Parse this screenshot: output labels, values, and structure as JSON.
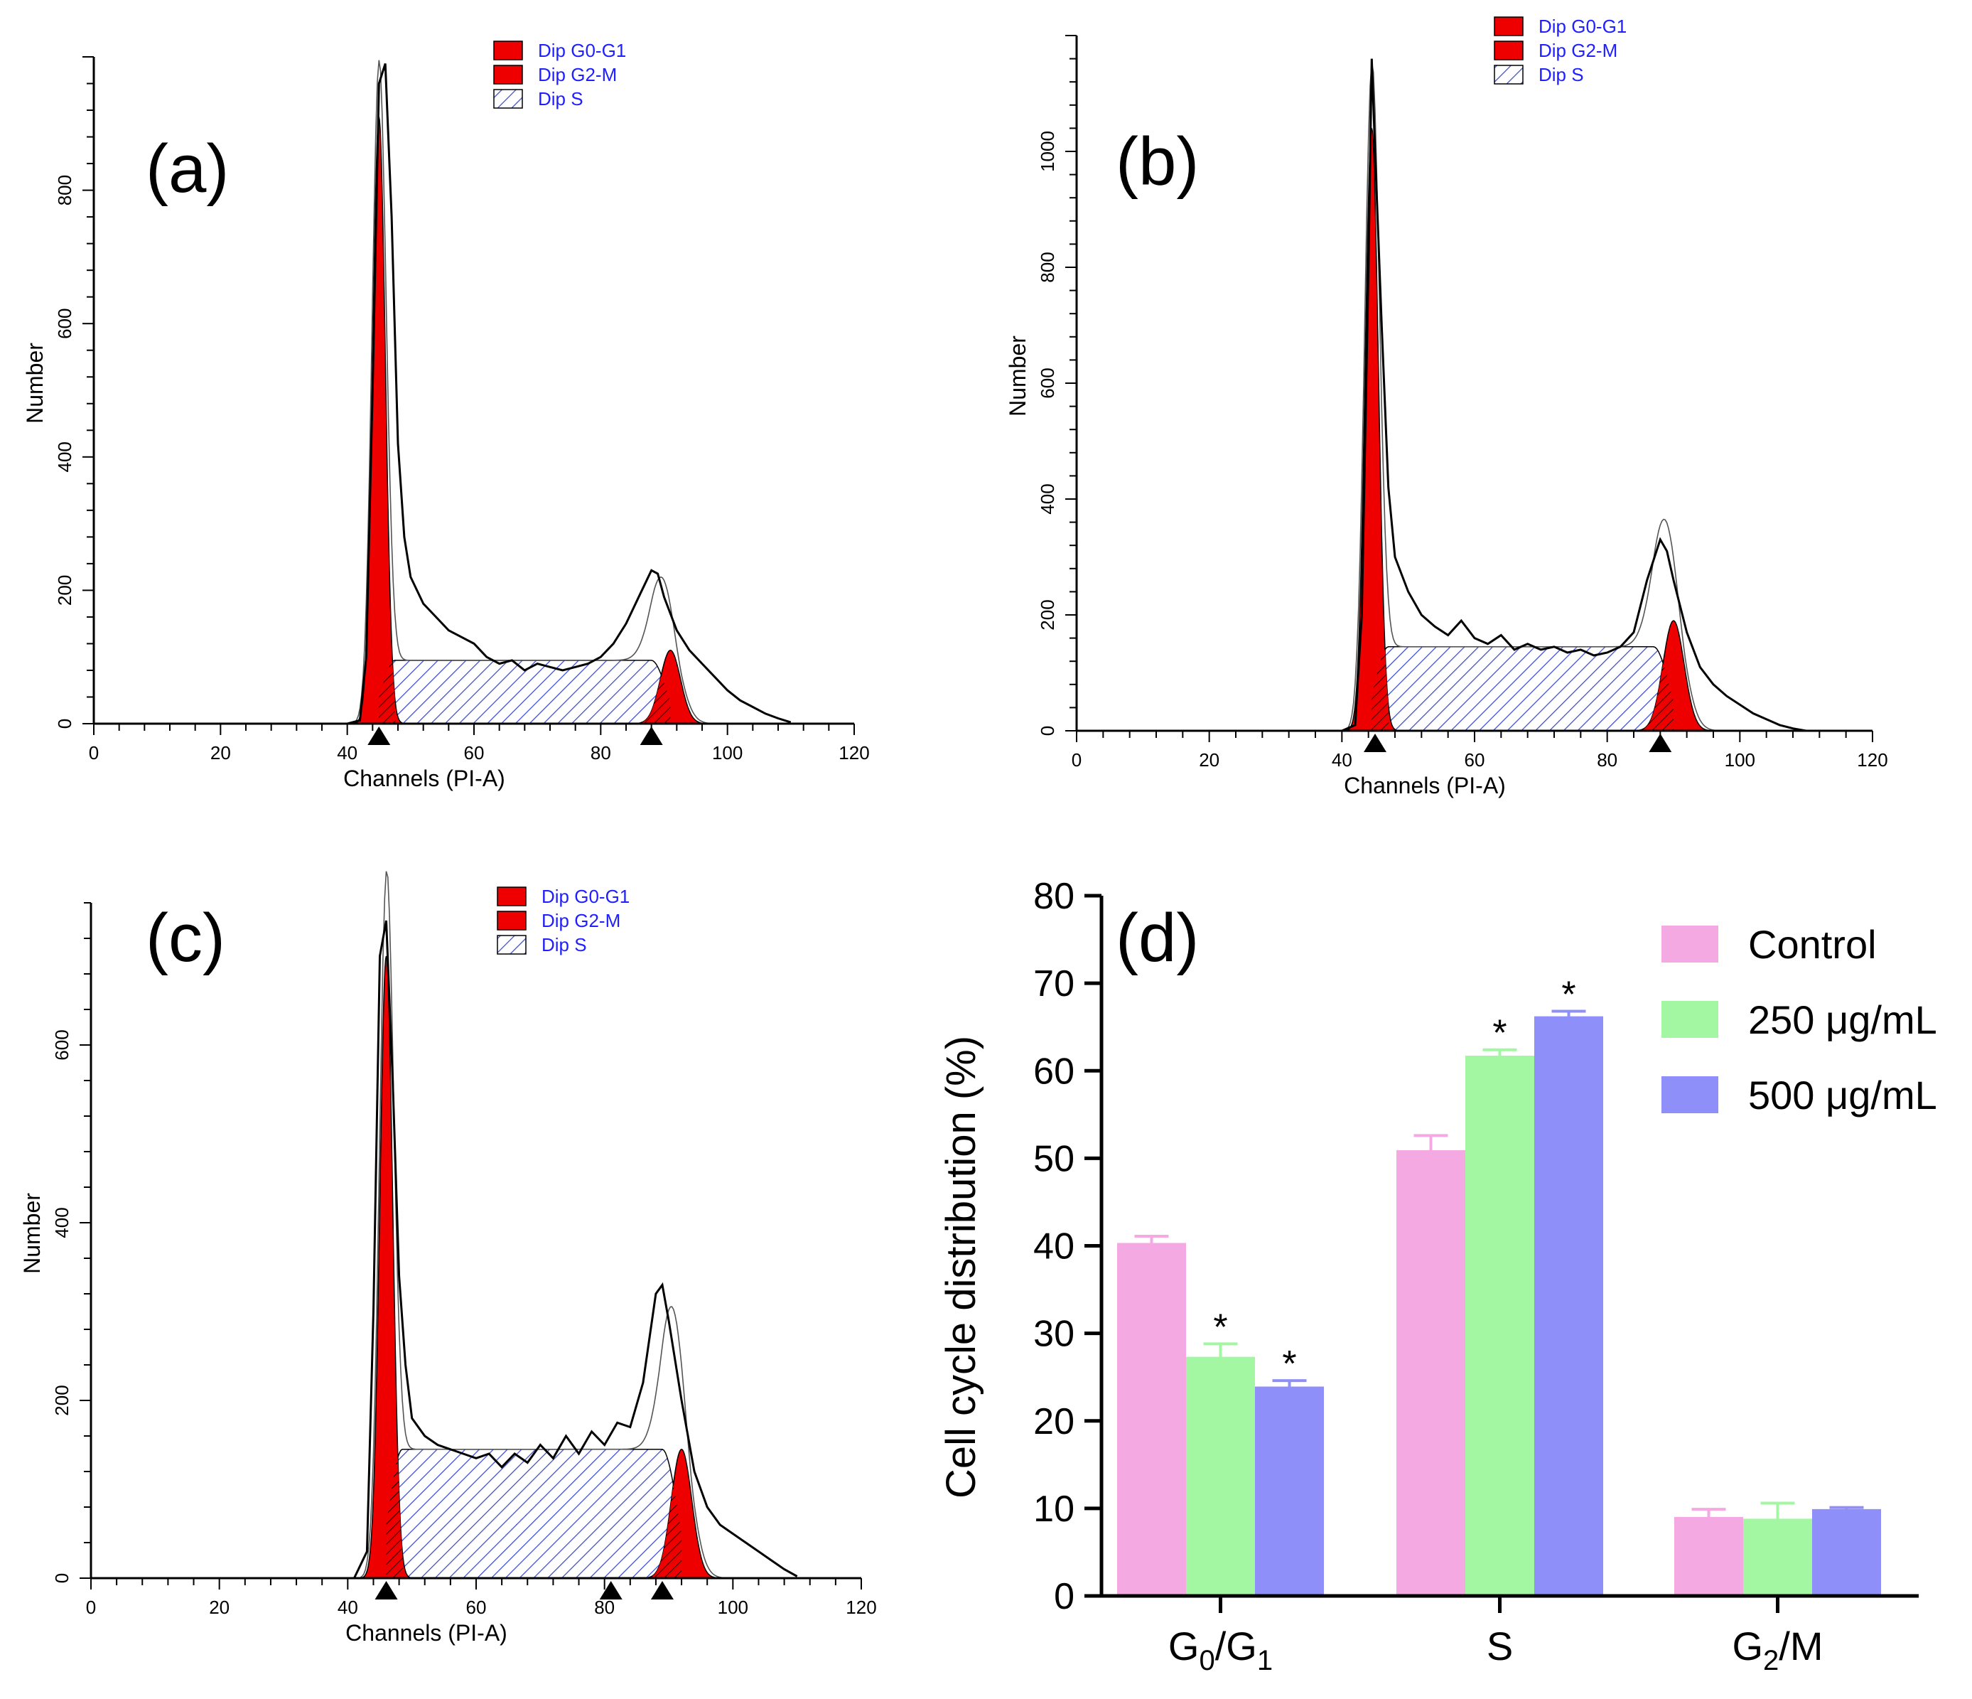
{
  "chart_data": [
    {
      "panel": "(a)",
      "type": "area",
      "xlabel": "Channels (PI-A)",
      "ylabel": "Number",
      "xlim": [
        0,
        120
      ],
      "ylim": [
        0,
        1000
      ],
      "xticks": [
        "0",
        "20",
        "40",
        "60",
        "80",
        "100",
        "120"
      ],
      "yticks": [
        "0",
        "200",
        "400",
        "600",
        "800"
      ],
      "legend": [
        "Dip G0-G1",
        "Dip G2-M",
        "Dip S"
      ],
      "peaks": {
        "g0g1_channel": 45,
        "g0g1_height": 910,
        "g2m_channel": 91,
        "g2m_height": 110,
        "s_level": 95
      },
      "markers": [
        45,
        88
      ],
      "histogram": [
        [
          40,
          0
        ],
        [
          42,
          5
        ],
        [
          43,
          100
        ],
        [
          44,
          500
        ],
        [
          45,
          960
        ],
        [
          46,
          990
        ],
        [
          47,
          760
        ],
        [
          48,
          420
        ],
        [
          49,
          280
        ],
        [
          50,
          220
        ],
        [
          52,
          180
        ],
        [
          54,
          160
        ],
        [
          56,
          140
        ],
        [
          58,
          130
        ],
        [
          60,
          120
        ],
        [
          62,
          100
        ],
        [
          64,
          90
        ],
        [
          66,
          95
        ],
        [
          68,
          80
        ],
        [
          70,
          90
        ],
        [
          72,
          85
        ],
        [
          74,
          80
        ],
        [
          76,
          85
        ],
        [
          78,
          90
        ],
        [
          80,
          100
        ],
        [
          82,
          120
        ],
        [
          84,
          150
        ],
        [
          86,
          190
        ],
        [
          88,
          230
        ],
        [
          89,
          225
        ],
        [
          90,
          190
        ],
        [
          92,
          140
        ],
        [
          94,
          110
        ],
        [
          96,
          90
        ],
        [
          98,
          70
        ],
        [
          100,
          50
        ],
        [
          102,
          35
        ],
        [
          104,
          25
        ],
        [
          106,
          15
        ],
        [
          108,
          8
        ],
        [
          110,
          2
        ]
      ]
    },
    {
      "panel": "(b)",
      "type": "area",
      "xlabel": "Channels (PI-A)",
      "ylabel": "Number",
      "xlim": [
        0,
        120
      ],
      "ylim": [
        0,
        1200
      ],
      "xticks": [
        "0",
        "20",
        "40",
        "60",
        "80",
        "100",
        "120"
      ],
      "yticks": [
        "0",
        "200",
        "400",
        "600",
        "800",
        "1000"
      ],
      "legend": [
        "Dip G0-G1",
        "Dip G2-M",
        "Dip S"
      ],
      "peaks": {
        "g0g1_channel": 44.5,
        "g0g1_height": 1040,
        "g2m_channel": 90,
        "g2m_height": 190,
        "s_level": 145
      },
      "markers": [
        45,
        88
      ],
      "histogram": [
        [
          40,
          0
        ],
        [
          42,
          10
        ],
        [
          43,
          200
        ],
        [
          44,
          800
        ],
        [
          44.5,
          1160
        ],
        [
          45,
          1000
        ],
        [
          46,
          700
        ],
        [
          47,
          420
        ],
        [
          48,
          300
        ],
        [
          50,
          240
        ],
        [
          52,
          200
        ],
        [
          54,
          180
        ],
        [
          56,
          165
        ],
        [
          58,
          190
        ],
        [
          60,
          160
        ],
        [
          62,
          150
        ],
        [
          64,
          165
        ],
        [
          66,
          140
        ],
        [
          68,
          150
        ],
        [
          70,
          140
        ],
        [
          72,
          145
        ],
        [
          74,
          135
        ],
        [
          76,
          140
        ],
        [
          78,
          130
        ],
        [
          80,
          135
        ],
        [
          82,
          145
        ],
        [
          84,
          170
        ],
        [
          86,
          260
        ],
        [
          88,
          330
        ],
        [
          89,
          310
        ],
        [
          90,
          260
        ],
        [
          92,
          170
        ],
        [
          94,
          110
        ],
        [
          96,
          80
        ],
        [
          98,
          60
        ],
        [
          100,
          45
        ],
        [
          102,
          30
        ],
        [
          104,
          20
        ],
        [
          106,
          10
        ],
        [
          108,
          4
        ],
        [
          110,
          0
        ]
      ]
    },
    {
      "panel": "(c)",
      "type": "area",
      "xlabel": "Channels (PI-A)",
      "ylabel": "Number",
      "xlim": [
        0,
        120
      ],
      "ylim": [
        0,
        760
      ],
      "xticks": [
        "0",
        "20",
        "40",
        "60",
        "80",
        "100",
        "120"
      ],
      "yticks": [
        "0",
        "200",
        "400",
        "600"
      ],
      "legend": [
        "Dip G0-G1",
        "Dip G2-M",
        "Dip S"
      ],
      "peaks": {
        "g0g1_channel": 46,
        "g0g1_height": 700,
        "g2m_channel": 92,
        "g2m_height": 145,
        "s_level": 145
      },
      "markers": [
        46,
        81,
        89
      ],
      "histogram": [
        [
          41,
          0
        ],
        [
          43,
          30
        ],
        [
          44,
          300
        ],
        [
          45,
          700
        ],
        [
          46,
          740
        ],
        [
          47,
          560
        ],
        [
          48,
          340
        ],
        [
          49,
          240
        ],
        [
          50,
          180
        ],
        [
          52,
          160
        ],
        [
          54,
          150
        ],
        [
          56,
          145
        ],
        [
          58,
          140
        ],
        [
          60,
          135
        ],
        [
          62,
          140
        ],
        [
          64,
          125
        ],
        [
          66,
          140
        ],
        [
          68,
          130
        ],
        [
          70,
          150
        ],
        [
          72,
          135
        ],
        [
          74,
          160
        ],
        [
          76,
          140
        ],
        [
          78,
          165
        ],
        [
          80,
          150
        ],
        [
          82,
          175
        ],
        [
          84,
          170
        ],
        [
          86,
          220
        ],
        [
          88,
          320
        ],
        [
          89,
          330
        ],
        [
          90,
          290
        ],
        [
          92,
          200
        ],
        [
          94,
          120
        ],
        [
          96,
          80
        ],
        [
          98,
          60
        ],
        [
          100,
          50
        ],
        [
          102,
          40
        ],
        [
          104,
          30
        ],
        [
          106,
          20
        ],
        [
          108,
          10
        ],
        [
          110,
          2
        ]
      ]
    },
    {
      "panel": "(d)",
      "type": "bar",
      "ylabel": "Cell cycle distribution (%)",
      "ylim": [
        0,
        80
      ],
      "yticks": [
        "0",
        "10",
        "20",
        "30",
        "40",
        "50",
        "60",
        "70",
        "80"
      ],
      "categories": [
        {
          "main": "G",
          "sub1": "0",
          "mid": "/G",
          "sub2": "1"
        },
        {
          "main": "S",
          "sub1": "",
          "mid": "",
          "sub2": ""
        },
        {
          "main": "G",
          "sub1": "2",
          "mid": "/M",
          "sub2": ""
        }
      ],
      "series": [
        {
          "name": "Control",
          "color": "#f4a9e3",
          "values": [
            40.2,
            50.8,
            8.9
          ],
          "errors": [
            0.9,
            1.8,
            1.0
          ],
          "sig": [
            "",
            "",
            ""
          ]
        },
        {
          "name": "250 μg/mL",
          "color": "#a3f7a3",
          "values": [
            27.2,
            61.6,
            8.7
          ],
          "errors": [
            1.6,
            0.8,
            1.9
          ],
          "sig": [
            "*",
            "*",
            ""
          ]
        },
        {
          "name": "500 μg/mL",
          "color": "#8f8ffa",
          "values": [
            23.8,
            66.1,
            9.8
          ],
          "errors": [
            0.8,
            0.7,
            0.3
          ],
          "sig": [
            "*",
            "*",
            ""
          ]
        }
      ]
    }
  ],
  "colors": {
    "phase_fill": "#ee0000",
    "s_hatch": "#3b4bd0",
    "legend_text": "#2020ff"
  }
}
